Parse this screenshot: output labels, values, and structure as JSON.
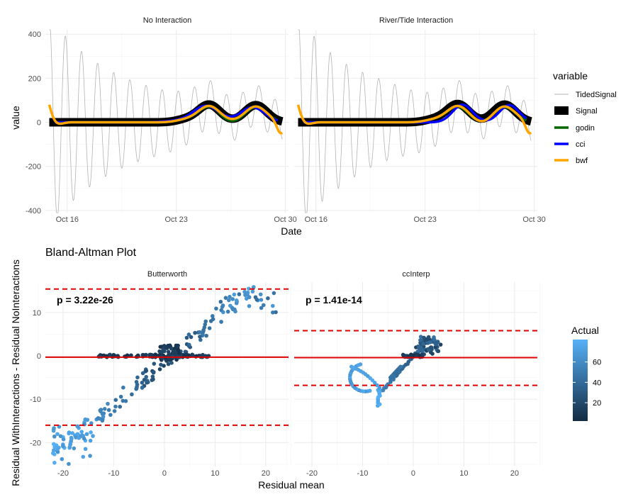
{
  "chart_data": [
    {
      "type": "line",
      "facets": [
        "No Interaction",
        "River/Tide Interaction"
      ],
      "xlabel": "Date",
      "ylabel": "value",
      "x_ticks": [
        "Oct 16",
        "Oct 23",
        "Oct 30"
      ],
      "x_tick_days": [
        16,
        23,
        30
      ],
      "xlim_days": [
        14.6,
        30.2
      ],
      "y_ticks": [
        -400,
        -200,
        0,
        200,
        400
      ],
      "ylim": [
        -410,
        420
      ],
      "legend": {
        "title": "variable",
        "position": "right",
        "entries": [
          "TidedSignal",
          "Signal",
          "godin",
          "cci",
          "bwf"
        ]
      },
      "colors": {
        "TidedSignal": "#b3b3b3",
        "Signal": "#000000",
        "godin": "#006400",
        "cci": "#0000ff",
        "bwf": "#ffa500"
      },
      "series_description": {
        "TidedSignal": "tidal oscillation about the subtidal signal, amplitude decaying from about 400 to about 80",
        "Signal": "near zero until Oct 24, bumps to about 80 at Oct 25 and Oct 28",
        "bwf": "starts about 80, dips to -20 at Oct 15.5, near zero, follows Signal bumps, ends about -50"
      }
    },
    {
      "type": "scatter",
      "title": "Bland-Altman Plot",
      "facets": [
        "Butterworth",
        "ccInterp"
      ],
      "xlabel": "Residual mean",
      "ylabel": "Residual WithInteractions - Residual NoInteractions",
      "x_ticks": [
        -20,
        -10,
        0,
        10,
        20
      ],
      "xlim": [
        -23.5,
        24.5
      ],
      "y_ticks": [
        -20,
        -10,
        0,
        10
      ],
      "ylim": [
        -25.5,
        17
      ],
      "color_legend": {
        "title": "Actual",
        "ticks": [
          20,
          40,
          60
        ],
        "range": [
          2,
          82
        ],
        "low_color": "#132B43",
        "high_color": "#56B1F7"
      },
      "panels": [
        {
          "name": "Butterworth",
          "p_value_label": "p = 3.22e-26",
          "mean_line": -0.3,
          "upper_limit": 15.4,
          "lower_limit": -16.0
        },
        {
          "name": "ccInterp",
          "p_value_label": "p = 1.41e-14",
          "mean_line": -0.4,
          "upper_limit": 5.8,
          "lower_limit": -6.8
        }
      ],
      "line_colors": {
        "mean": "#e00000",
        "limits": "#e00000"
      }
    }
  ]
}
